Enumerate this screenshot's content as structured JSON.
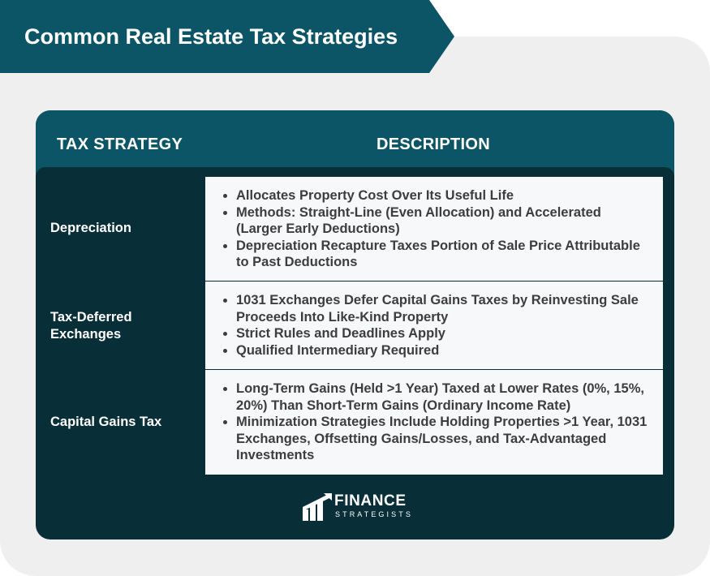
{
  "title": {
    "prefix": "Common",
    "emphasis": "Real Estate Tax Strategies"
  },
  "table": {
    "headers": {
      "strategy": "TAX STRATEGY",
      "description": "DESCRIPTION"
    },
    "rows": [
      {
        "strategy": "Depreciation",
        "bullets": [
          "Allocates Property Cost Over Its Useful Life",
          "Methods: Straight-Line (Even Allocation) and Accelerated (Larger Early Deductions)",
          "Depreciation Recapture Taxes Portion of Sale Price Attributable to Past Deductions"
        ]
      },
      {
        "strategy": "Tax-Deferred Exchanges",
        "bullets": [
          "1031 Exchanges Defer Capital Gains Taxes by Reinvesting Sale Proceeds Into Like-Kind Property",
          "Strict Rules and Deadlines Apply",
          "Qualified Intermediary Required"
        ]
      },
      {
        "strategy": "Capital Gains Tax",
        "bullets": [
          "Long-Term Gains (Held >1 Year) Taxed at Lower Rates (0%, 15%, 20%) Than Short-Term Gains (Ordinary Income Rate)",
          "Minimization Strategies Include Holding Properties >1 Year, 1031 Exchanges, Offsetting Gains/Losses, and Tax-Advantaged Investments"
        ]
      }
    ]
  },
  "logo": {
    "name": "FINANCE",
    "sub": "STRATEGISTS",
    "icon": "finance-strategists-logo-icon"
  },
  "colors": {
    "header_teal": "#0c5566",
    "card_dark": "#082e37",
    "row_box": "#f7f8fa",
    "text": "#3d3d3d",
    "background": "#efefef"
  }
}
